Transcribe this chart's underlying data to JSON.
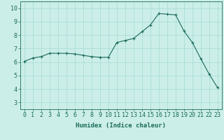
{
  "x": [
    0,
    1,
    2,
    3,
    4,
    5,
    6,
    7,
    8,
    9,
    10,
    11,
    12,
    13,
    14,
    15,
    16,
    17,
    18,
    19,
    20,
    21,
    22,
    23
  ],
  "y": [
    6.05,
    6.3,
    6.4,
    6.65,
    6.65,
    6.65,
    6.6,
    6.5,
    6.4,
    6.35,
    6.35,
    7.45,
    7.6,
    7.75,
    8.25,
    8.75,
    9.6,
    9.55,
    9.5,
    8.3,
    7.45,
    6.25,
    5.1,
    4.1
  ],
  "line_color": "#1a6b5a",
  "marker": "+",
  "marker_size": 3,
  "background_color": "#cceee8",
  "grid_color": "#aaddda",
  "xlabel": "Humidex (Indice chaleur)",
  "xlim": [
    -0.5,
    23.5
  ],
  "ylim": [
    2.5,
    10.5
  ],
  "xtick_labels": [
    "0",
    "1",
    "2",
    "3",
    "4",
    "5",
    "6",
    "7",
    "8",
    "9",
    "10",
    "11",
    "12",
    "13",
    "14",
    "15",
    "16",
    "17",
    "18",
    "19",
    "20",
    "21",
    "22",
    "23"
  ],
  "ytick_values": [
    3,
    4,
    5,
    6,
    7,
    8,
    9,
    10
  ],
  "xlabel_fontsize": 6.5,
  "tick_fontsize": 6
}
